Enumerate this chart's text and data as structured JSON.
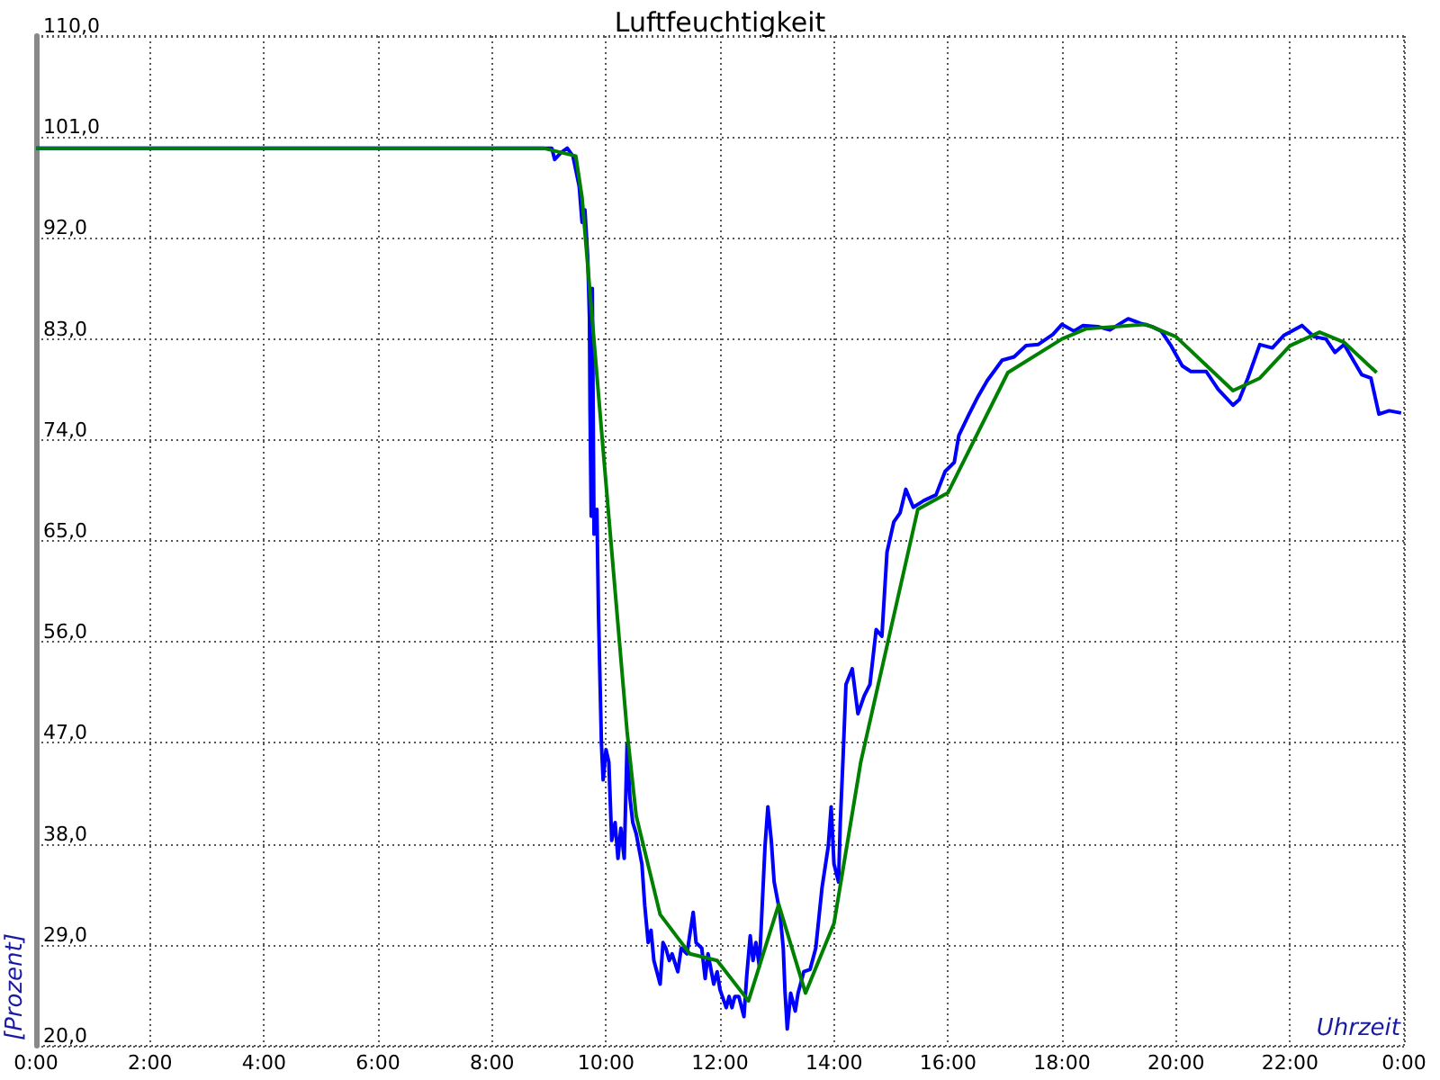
{
  "chart_data": {
    "type": "line",
    "title": "Luftfeuchtigkeit",
    "xlabel": "Uhrzeit",
    "ylabel": "[Prozent]",
    "xlim": [
      0,
      24
    ],
    "ylim": [
      20,
      110
    ],
    "xticks": [
      {
        "value": 0,
        "label": "0:00"
      },
      {
        "value": 2,
        "label": "2:00"
      },
      {
        "value": 4,
        "label": "4:00"
      },
      {
        "value": 6,
        "label": "6:00"
      },
      {
        "value": 8,
        "label": "8:00"
      },
      {
        "value": 10,
        "label": "10:00"
      },
      {
        "value": 12,
        "label": "12:00"
      },
      {
        "value": 14,
        "label": "14:00"
      },
      {
        "value": 16,
        "label": "16:00"
      },
      {
        "value": 18,
        "label": "18:00"
      },
      {
        "value": 20,
        "label": "20:00"
      },
      {
        "value": 22,
        "label": "22:00"
      },
      {
        "value": 24,
        "label": "0:00"
      }
    ],
    "yticks": [
      {
        "value": 20,
        "label": "20,0"
      },
      {
        "value": 29,
        "label": "29,0"
      },
      {
        "value": 38,
        "label": "38,0"
      },
      {
        "value": 47,
        "label": "47,0"
      },
      {
        "value": 56,
        "label": "56,0"
      },
      {
        "value": 65,
        "label": "65,0"
      },
      {
        "value": 74,
        "label": "74,0"
      },
      {
        "value": 83,
        "label": "83,0"
      },
      {
        "value": 92,
        "label": "92,0"
      },
      {
        "value": 101,
        "label": "101,0"
      },
      {
        "value": 110,
        "label": "110,0"
      }
    ],
    "grid": true,
    "marker": "none",
    "line_style": "solid",
    "series": [
      {
        "color": "#0000ff",
        "x": [
          0,
          9.05,
          9.1,
          9.21,
          9.32,
          9.42,
          9.53,
          9.58,
          9.63,
          9.68,
          9.71,
          9.72,
          9.74,
          9.76,
          9.79,
          9.84,
          9.87,
          9.92,
          9.95,
          10.0,
          10.05,
          10.1,
          10.16,
          10.21,
          10.26,
          10.32,
          10.37,
          10.42,
          10.47,
          10.53,
          10.63,
          10.68,
          10.74,
          10.79,
          10.84,
          10.95,
          11.0,
          11.05,
          11.11,
          11.16,
          11.26,
          11.32,
          11.42,
          11.53,
          11.58,
          11.68,
          11.74,
          11.79,
          11.89,
          11.95,
          12.0,
          12.11,
          12.16,
          12.21,
          12.26,
          12.33,
          12.42,
          12.47,
          12.53,
          12.58,
          12.63,
          12.69,
          12.76,
          12.79,
          12.84,
          12.9,
          12.95,
          13.05,
          13.11,
          13.14,
          13.18,
          13.24,
          13.32,
          13.37,
          13.47,
          13.58,
          13.68,
          13.79,
          13.9,
          13.95,
          14.0,
          14.08,
          14.11,
          14.16,
          14.21,
          14.32,
          14.42,
          14.53,
          14.63,
          14.74,
          14.84,
          14.93,
          15.05,
          15.16,
          15.26,
          15.39,
          15.58,
          15.79,
          15.95,
          16.11,
          16.19,
          16.37,
          16.53,
          16.69,
          16.95,
          17.16,
          17.37,
          17.58,
          17.84,
          18.0,
          18.21,
          18.37,
          18.63,
          18.84,
          19.16,
          19.37,
          19.58,
          19.74,
          19.9,
          20.11,
          20.26,
          20.53,
          20.74,
          21.0,
          21.11,
          21.26,
          21.47,
          21.69,
          21.89,
          22.21,
          22.42,
          22.63,
          22.79,
          22.95,
          23.11,
          23.26,
          23.42,
          23.56,
          23.74,
          23.95
        ],
        "values": [
          100,
          100,
          99,
          99.6,
          100,
          99.3,
          96.6,
          93.4,
          94.5,
          90.2,
          84.9,
          76.8,
          67.2,
          87.5,
          65.6,
          67.8,
          58.1,
          46.9,
          43.7,
          46.4,
          45.3,
          38.3,
          39.9,
          36.7,
          39.4,
          36.7,
          46.9,
          42.1,
          39.9,
          38.9,
          36.2,
          32.5,
          29.2,
          30.3,
          27.6,
          25.5,
          29.2,
          28.7,
          27.6,
          28.2,
          26.6,
          28.7,
          28.2,
          31.9,
          29.2,
          28.7,
          26,
          28.2,
          25.5,
          26.6,
          25,
          23.4,
          24.4,
          23.4,
          24.4,
          24.4,
          22.6,
          26.3,
          29.8,
          27.6,
          29.2,
          27.1,
          34.6,
          37.8,
          41.3,
          38.3,
          34.6,
          31.9,
          28.7,
          24.9,
          21.5,
          24.7,
          23.1,
          24.7,
          26.6,
          26.8,
          28.7,
          34.1,
          37.8,
          41.3,
          36.2,
          34.6,
          39.9,
          45.8,
          52.2,
          53.6,
          49.6,
          51.2,
          52.2,
          57.1,
          56.5,
          64,
          66.7,
          67.5,
          69.6,
          68,
          68.6,
          69.1,
          71.2,
          72,
          74.4,
          76.3,
          77.9,
          79.3,
          81.1,
          81.4,
          82.4,
          82.5,
          83.4,
          84.3,
          83.7,
          84.2,
          84.1,
          83.8,
          84.8,
          84.4,
          84.1,
          83.7,
          82.5,
          80.6,
          80.1,
          80.1,
          78.5,
          77.1,
          77.6,
          79.5,
          82.5,
          82.2,
          83.3,
          84.2,
          83.2,
          83,
          81.8,
          82.5,
          81.1,
          79.8,
          79.5,
          76.3,
          76.6,
          76.4
        ]
      },
      {
        "color": "#008000",
        "x": [
          0,
          8.9,
          9.47,
          9.58,
          9.95,
          10.37,
          10.53,
          10.95,
          11.47,
          11.95,
          12.5,
          13.03,
          13.5,
          14.0,
          14.47,
          15.47,
          16.0,
          17.05,
          18.0,
          18.42,
          19.47,
          20.0,
          21.0,
          21.47,
          22.0,
          22.52,
          22.95,
          23.52
        ],
        "values": [
          100,
          100,
          99.3,
          95.6,
          73.1,
          48,
          40.5,
          31.7,
          28.2,
          27.6,
          24,
          32.6,
          24.7,
          30.9,
          45.3,
          67.8,
          69.3,
          80,
          83,
          83.9,
          84.3,
          83.2,
          78.4,
          79.5,
          82.4,
          83.6,
          82.7,
          80
        ]
      }
    ]
  }
}
